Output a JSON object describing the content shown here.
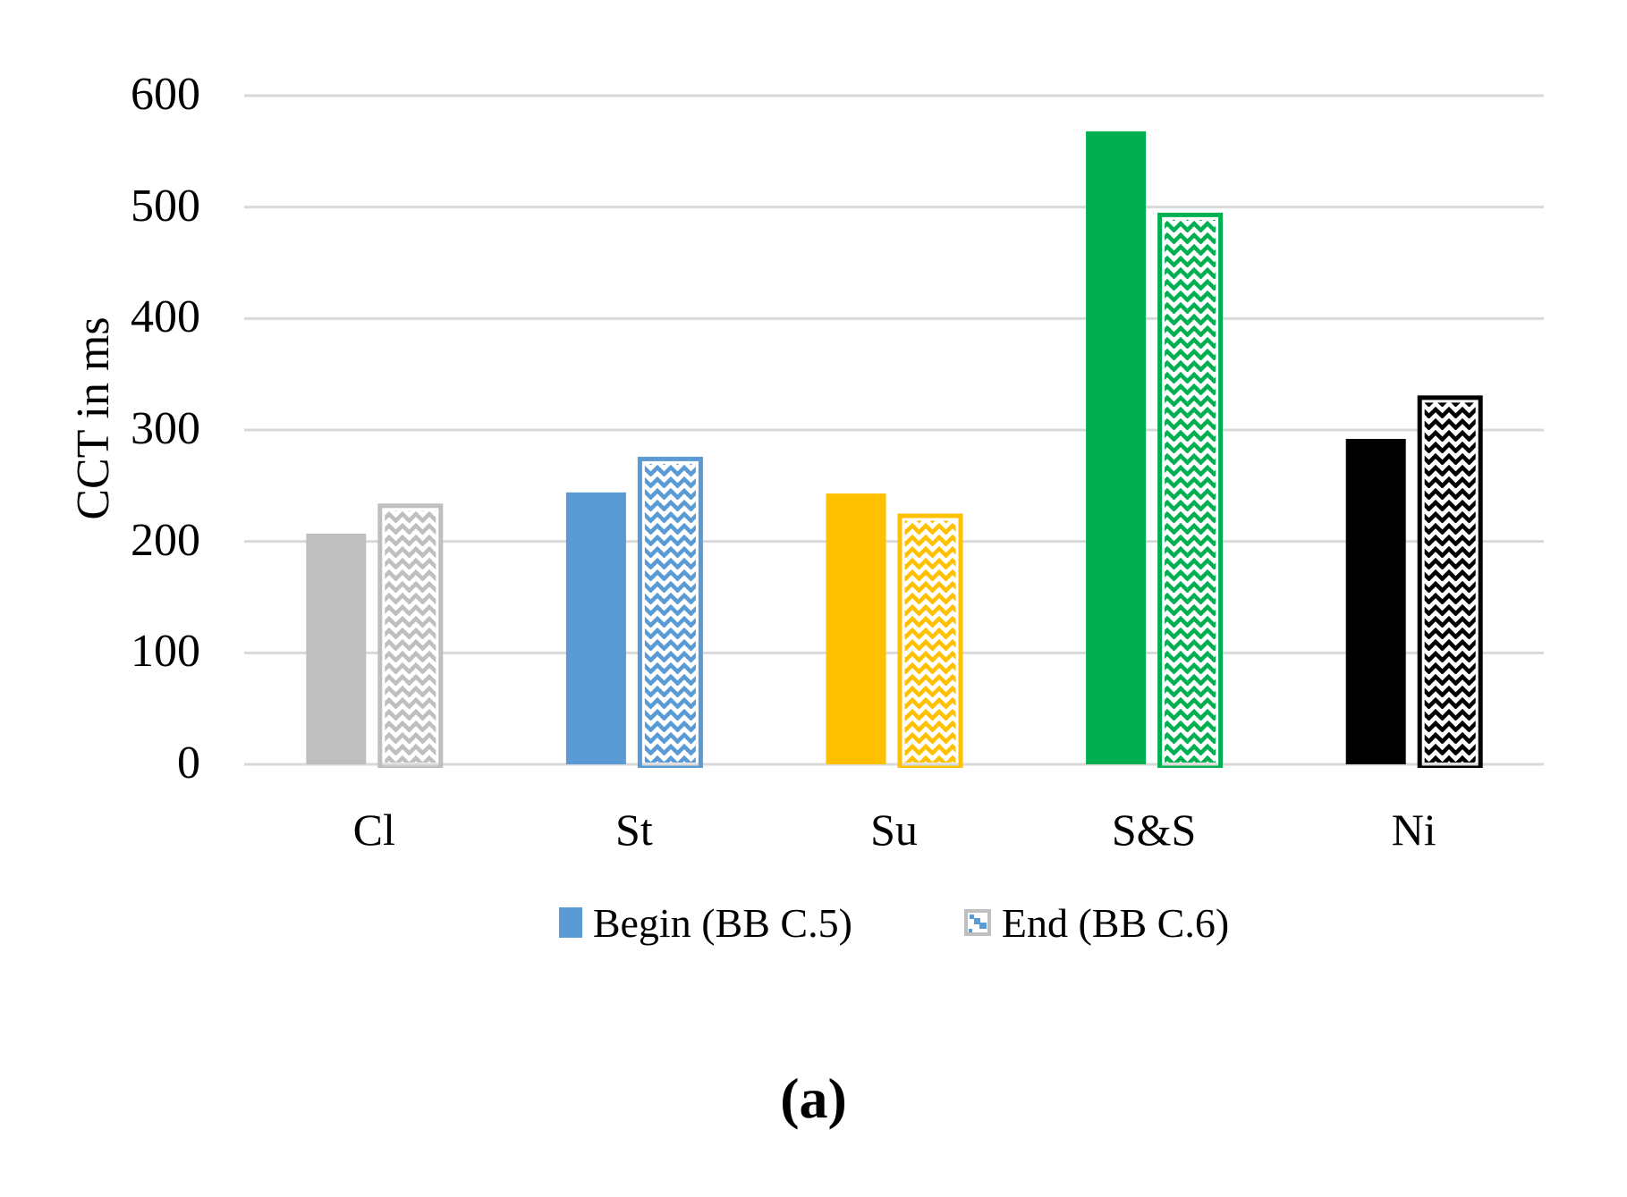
{
  "figure": {
    "caption": "(a)"
  },
  "chart_data": {
    "type": "bar",
    "title": "",
    "xlabel": "",
    "ylabel": "CCT in ms",
    "categories": [
      "Cl",
      "St",
      "Su",
      "S&S",
      "Ni"
    ],
    "series": [
      {
        "name": "Begin (BB C.5)",
        "style": "solid",
        "values": [
          207,
          244,
          243,
          568,
          292
        ]
      },
      {
        "name": "End (BB C.6)",
        "style": "wave-pattern",
        "values": [
          234,
          276,
          225,
          495,
          331
        ]
      }
    ],
    "category_colors": [
      "#BFBFBF",
      "#5B9BD5",
      "#FFC000",
      "#00B050",
      "#000000"
    ],
    "ylim": [
      0,
      600
    ],
    "yticks": [
      0,
      100,
      200,
      300,
      400,
      500,
      600
    ],
    "grid": "horizontal",
    "gridline_color": "#D9D9D9",
    "background_color": "#FFFFFF",
    "legend_position": "bottom",
    "legend_solid_swatch_color": "#5B9BD5",
    "legend_pattern_swatch_border_color": "#BFBFBF",
    "legend_pattern_swatch_line_color": "#5B9BD5"
  }
}
